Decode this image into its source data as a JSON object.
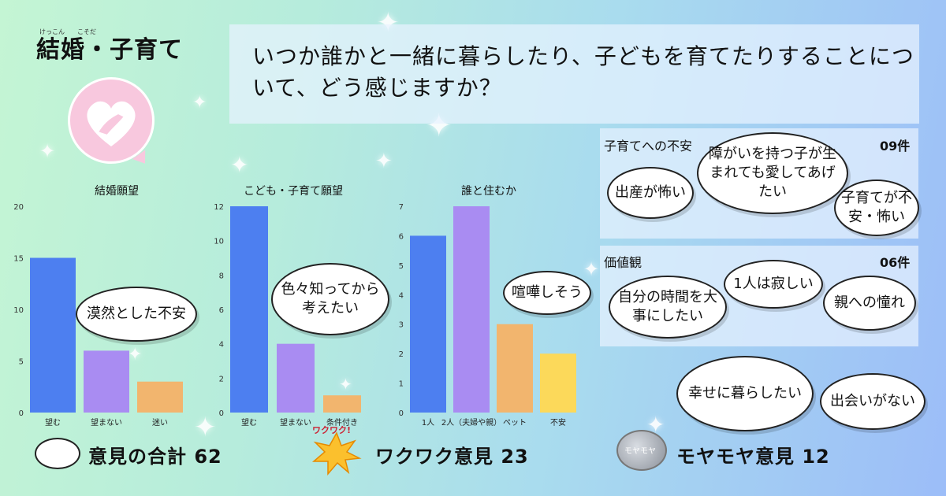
{
  "topic": {
    "title": "結婚・子育て",
    "ruby": "けっこん　　こそだ"
  },
  "question": {
    "text": "いつか誰かと一緒に暮らしたり、子どもを育てたりすることについて、どう感じますか？"
  },
  "chart_data": [
    {
      "type": "bar",
      "title": "結婚願望",
      "categories": [
        "望む",
        "望まない",
        "迷い"
      ],
      "values": [
        15,
        6,
        3
      ],
      "ylim": [
        0,
        20
      ],
      "yticks": [
        0,
        5,
        10,
        15,
        20
      ],
      "colors": [
        "#4d7ff0",
        "#a98cf2",
        "#f2b56e"
      ]
    },
    {
      "type": "bar",
      "title": "こども・子育て願望",
      "categories": [
        "望む",
        "望まない",
        "条件付き"
      ],
      "values": [
        12,
        4,
        1
      ],
      "ylim": [
        0,
        12
      ],
      "yticks": [
        0,
        2,
        4,
        6,
        8,
        10,
        12
      ],
      "colors": [
        "#4d7ff0",
        "#a98cf2",
        "#f2b56e"
      ]
    },
    {
      "type": "bar",
      "title": "誰と住むか",
      "categories": [
        "1人",
        "2人（夫婦や親）",
        "ペット",
        "不安"
      ],
      "values": [
        6,
        7,
        3,
        2
      ],
      "ylim": [
        0,
        7
      ],
      "yticks": [
        0,
        1,
        2,
        3,
        4,
        5,
        6,
        7
      ],
      "colors": [
        "#4d7ff0",
        "#a98cf2",
        "#f2b56e",
        "#fcd95a"
      ]
    }
  ],
  "chart_bubbles": {
    "c1": "漠然とした不安",
    "c2": "色々知ってから考えたい",
    "c3": "喧嘩しそう"
  },
  "panels": {
    "anxiety": {
      "label": "子育てへの不安",
      "count": "09件",
      "opinions": [
        "出産が怖い",
        "障がいを持つ子が生まれても愛してあげたい",
        "子育てが不安・怖い"
      ]
    },
    "values": {
      "label": "価値観",
      "count": "06件",
      "opinions": [
        "自分の時間を大事にしたい",
        "1人は寂しい",
        "親への憧れ"
      ]
    },
    "extra": [
      "幸せに暮らしたい",
      "出会いがない"
    ]
  },
  "footer": {
    "total": "意見の合計 62",
    "waku_badge": "ワクワク!",
    "waku": "ワクワク意見 23",
    "moya_badge": "モヤモヤ",
    "moya": "モヤモヤ意見 12"
  }
}
